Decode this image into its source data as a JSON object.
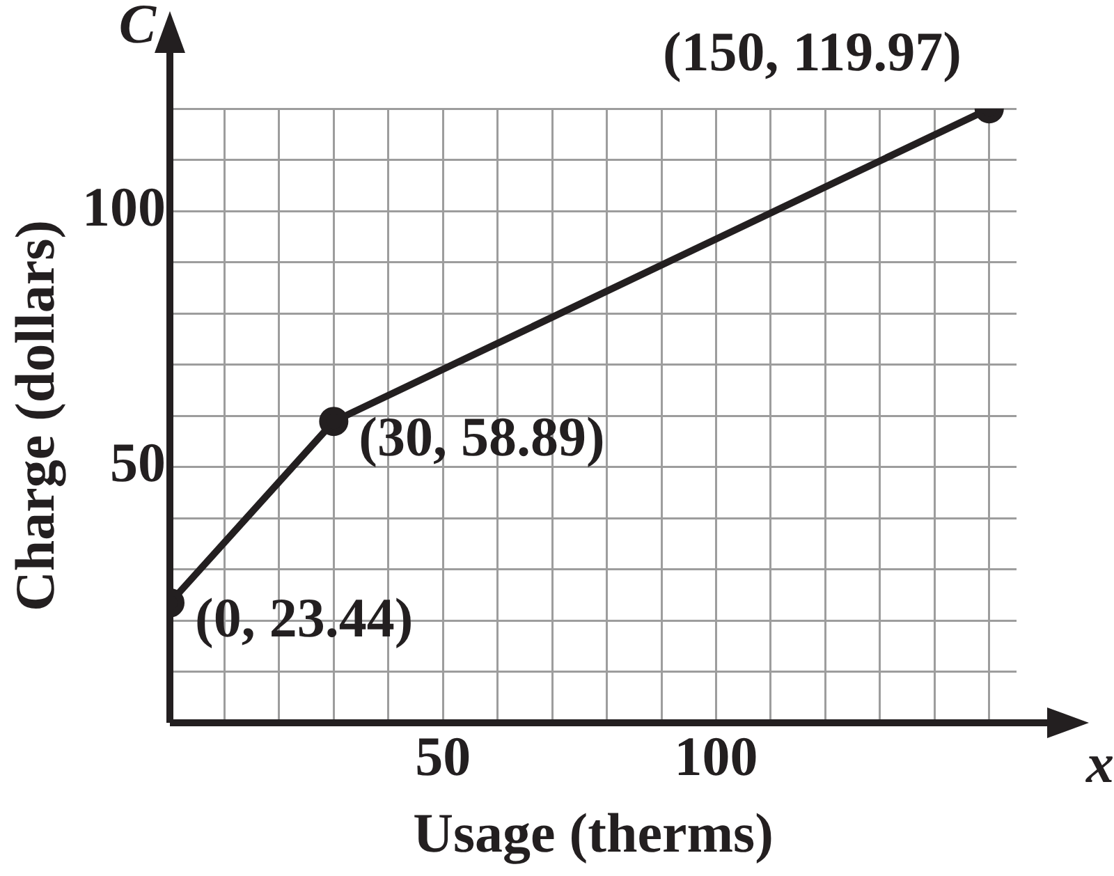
{
  "chart_data": {
    "type": "line",
    "xlabel": "Usage (therms)",
    "ylabel": "Charge (dollars)",
    "x": [
      0,
      30,
      150
    ],
    "series": [
      {
        "color": "#231f20",
        "values": [
          23.44,
          58.89,
          119.97
        ]
      }
    ],
    "xlim": [
      0,
      155
    ],
    "ylim": [
      0,
      120
    ],
    "xticks": [
      {
        "value": 0,
        "label": null
      },
      {
        "value": 10,
        "label": null
      },
      {
        "value": 20,
        "label": null
      },
      {
        "value": 30,
        "label": null
      },
      {
        "value": 40,
        "label": null
      },
      50,
      {
        "value": 60,
        "label": null
      },
      {
        "value": 70,
        "label": null
      },
      {
        "value": 80,
        "label": null
      },
      {
        "value": 90,
        "label": null
      },
      100,
      {
        "value": 110,
        "label": null
      },
      {
        "value": 120,
        "label": null
      },
      {
        "value": 130,
        "label": null
      },
      {
        "value": 140,
        "label": null
      },
      {
        "value": 150,
        "label": null
      }
    ],
    "yticks": [
      {
        "value": 0,
        "label": null
      },
      {
        "value": 10,
        "label": null
      },
      {
        "value": 20,
        "label": null
      },
      {
        "value": 30,
        "label": null
      },
      {
        "value": 40,
        "label": null
      },
      50,
      {
        "value": 60,
        "label": null
      },
      {
        "value": 70,
        "label": null
      },
      {
        "value": 80,
        "label": null
      },
      {
        "value": 90,
        "label": null
      },
      100,
      {
        "value": 110,
        "label": null
      },
      {
        "value": 120,
        "label": null
      }
    ],
    "annotations": [
      {
        "text": "(0, 23.44)",
        "x": 0,
        "y": 23.44
      },
      {
        "text": "(30, 58.89)",
        "x": 30,
        "y": 58.89
      },
      {
        "text": "(150, 119.97)",
        "x": 150,
        "y": 119.97
      },
      "C",
      "x"
    ],
    "grid": true,
    "legend": false,
    "marker": "circle",
    "line_style": "solid"
  }
}
